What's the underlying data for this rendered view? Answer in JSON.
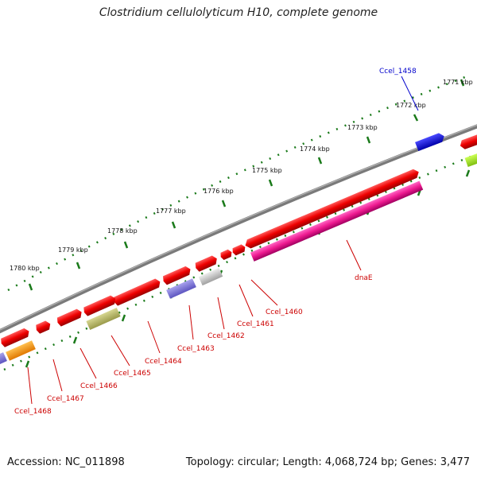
{
  "title": "Clostridium cellulolyticum H10, complete genome",
  "footer": {
    "accession": "Accession: NC_011898",
    "topology": "Topology: circular; Length: 4,068,724 bp; Genes: 3,477"
  },
  "colors": {
    "backbone": "#8a8a8a",
    "tick": "#1a7a1a",
    "red": "#ee0000",
    "label_red": "#cc0000",
    "label_blue": "#0000cc"
  },
  "kbp_labels": [
    "1771 kbp",
    "1772 kbp",
    "1773 kbp",
    "1774 kbp",
    "1775 kbp",
    "1776 kbp",
    "1777 kbp",
    "1778 kbp",
    "1779 kbp",
    "1780 kbp"
  ],
  "gene_labels": [
    "Ccel_1458",
    "dnaE",
    "Ccel_1460",
    "Ccel_1461",
    "Ccel_1462",
    "Ccel_1463",
    "Ccel_1464",
    "Ccel_1465",
    "Ccel_1466",
    "Ccel_1467",
    "Ccel_1468"
  ]
}
